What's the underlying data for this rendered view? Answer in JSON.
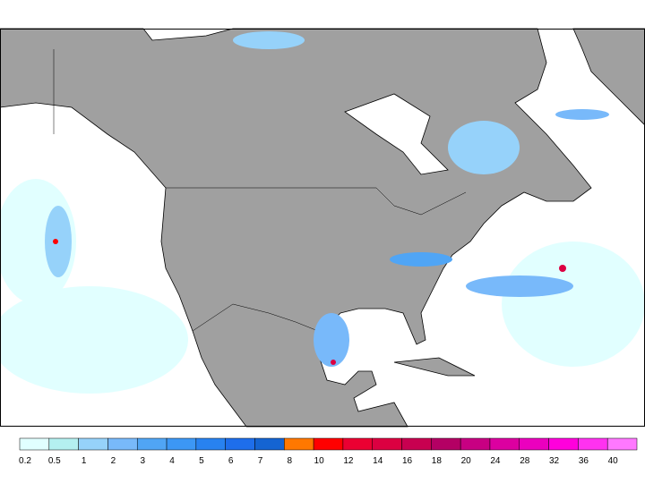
{
  "colorbar": {
    "ticks": [
      0.2,
      0.5,
      1,
      2,
      3,
      4,
      5,
      6,
      7,
      8,
      10,
      12,
      14,
      16,
      18,
      20,
      24,
      28,
      32,
      36,
      40
    ],
    "colors": [
      "#e1ffff",
      "#b4f0f0",
      "#96d2fa",
      "#78b9fa",
      "#50a5f5",
      "#3c97f5",
      "#2882f0",
      "#1e6eeb",
      "#1464d2",
      "#ff7800",
      "#ff0000",
      "#eb0032",
      "#dc0041",
      "#c80050",
      "#b40064",
      "#c80082",
      "#dc00a0",
      "#eb00be",
      "#ff00dc",
      "#ff32f0",
      "#ff78ff"
    ]
  }
}
